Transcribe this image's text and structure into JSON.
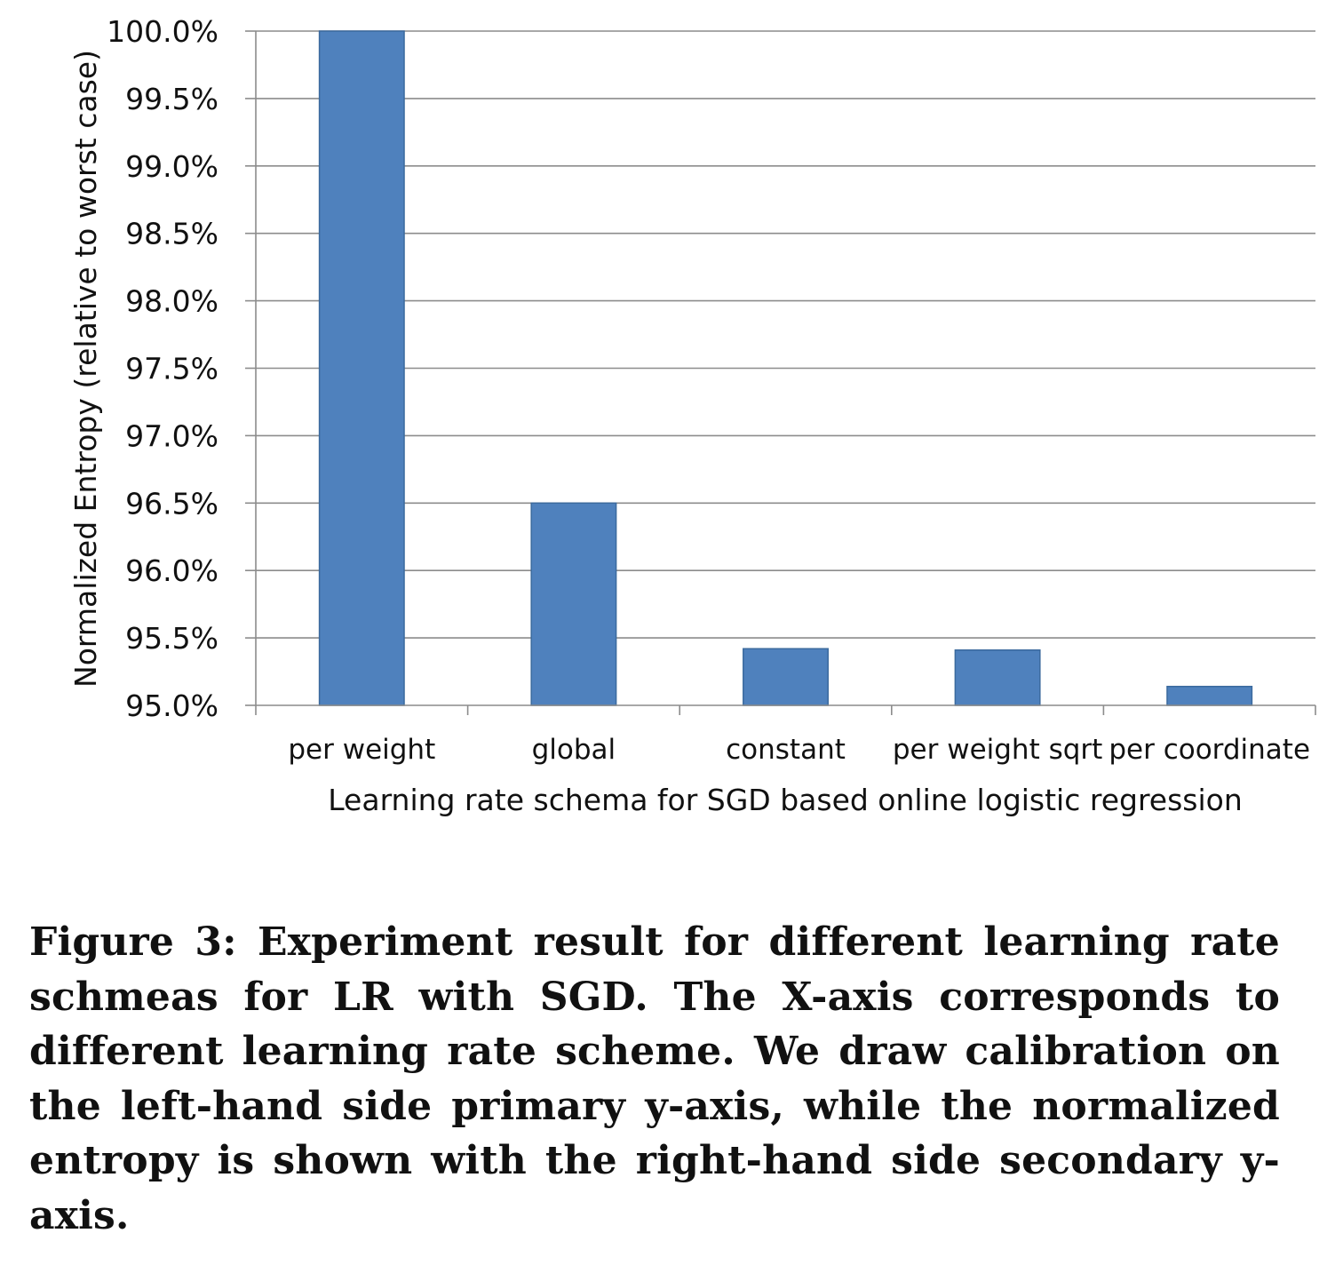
{
  "chart_data": {
    "type": "bar",
    "categories": [
      "per weight",
      "global",
      "constant",
      "per weight sqrt",
      "per coordinate"
    ],
    "values": [
      100.0,
      96.5,
      95.42,
      95.41,
      95.14
    ],
    "ylabel": "Normalized Entropy (relative to worst case)",
    "xlabel": "Learning rate schema for SGD based online logistic regression",
    "ylim": [
      95.0,
      100.0
    ],
    "yticks": [
      "95.0%",
      "95.5%",
      "96.0%",
      "96.5%",
      "97.0%",
      "97.5%",
      "98.0%",
      "98.5%",
      "99.0%",
      "99.5%",
      "100.0%"
    ],
    "grid": true,
    "legend": "none",
    "bar_color": "#4f81bd"
  },
  "caption": {
    "text": "Figure 3: Experiment result for different learning rate schmeas for LR with SGD. The X-axis corresponds to different learning rate scheme. We draw calibration on the left-hand side primary y-axis, while the normalized entropy is shown with the right-hand side secondary y-axis."
  }
}
